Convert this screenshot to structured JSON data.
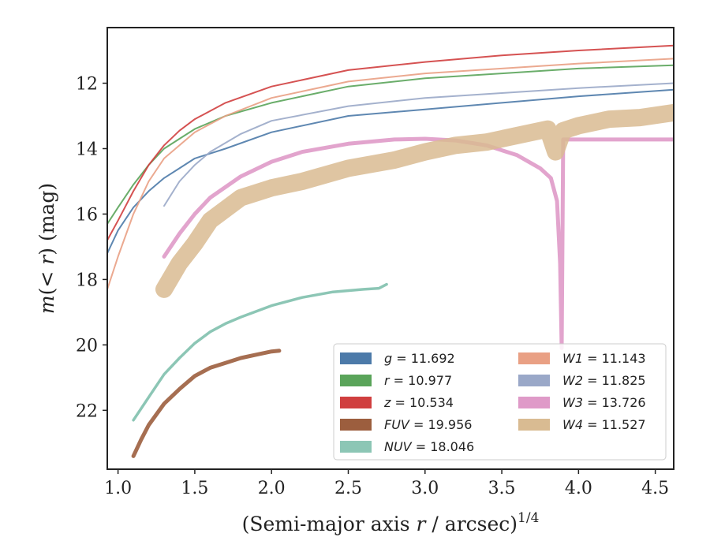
{
  "chart_data": {
    "type": "line",
    "xlabel": "(Semi-major axis r / arcsec)",
    "xlabel_main": "(Semi-major axis ",
    "xlabel_var": "r",
    "xlabel_tail": " / arcsec)",
    "xlabel_sup": "1/4",
    "ylabel": "m(< r) (mag)",
    "ylabel_pre": "m",
    "ylabel_mid": "(< ",
    "ylabel_var": "r",
    "ylabel_post": ") (mag)",
    "xlim": [
      0.93,
      4.62
    ],
    "ylim": [
      23.8,
      10.3
    ],
    "y_inverted": true,
    "grid": false,
    "xticks": [
      1.0,
      1.5,
      2.0,
      2.5,
      3.0,
      3.5,
      4.0,
      4.5
    ],
    "xtick_labels": [
      "1.0",
      "1.5",
      "2.0",
      "2.5",
      "3.0",
      "3.5",
      "4.0",
      "4.5"
    ],
    "yticks": [
      12,
      14,
      16,
      18,
      20,
      22
    ],
    "ytick_labels": [
      "12",
      "14",
      "16",
      "18",
      "20",
      "22"
    ],
    "legend_position": "lower-right",
    "series": [
      {
        "name": "g = 11.692",
        "band": "g",
        "total_mag": "11.692",
        "color": "#4c7aa9",
        "width": 2.0,
        "x": [
          0.93,
          1.0,
          1.1,
          1.2,
          1.3,
          1.4,
          1.5,
          1.7,
          2.0,
          2.5,
          3.0,
          3.5,
          4.0,
          4.62
        ],
        "y": [
          17.2,
          16.5,
          15.8,
          15.3,
          14.9,
          14.6,
          14.3,
          14.0,
          13.5,
          13.0,
          12.8,
          12.6,
          12.4,
          12.2
        ]
      },
      {
        "name": "r = 10.977",
        "band": "r",
        "total_mag": "10.977",
        "color": "#5aa45a",
        "width": 2.0,
        "x": [
          0.93,
          1.0,
          1.1,
          1.2,
          1.3,
          1.4,
          1.5,
          1.7,
          2.0,
          2.5,
          3.0,
          3.5,
          4.0,
          4.62
        ],
        "y": [
          16.3,
          15.8,
          15.1,
          14.5,
          14.0,
          13.7,
          13.4,
          13.0,
          12.6,
          12.1,
          11.85,
          11.7,
          11.55,
          11.45
        ]
      },
      {
        "name": "z = 10.534",
        "band": "z",
        "total_mag": "10.534",
        "color": "#d03f3f",
        "width": 2.0,
        "x": [
          0.93,
          1.0,
          1.1,
          1.2,
          1.3,
          1.4,
          1.5,
          1.7,
          2.0,
          2.5,
          3.0,
          3.5,
          4.0,
          4.62
        ],
        "y": [
          16.8,
          16.2,
          15.3,
          14.5,
          13.9,
          13.45,
          13.1,
          12.6,
          12.1,
          11.6,
          11.35,
          11.15,
          11.0,
          10.85
        ]
      },
      {
        "name": "FUV = 19.956",
        "band": "FUV",
        "total_mag": "19.956",
        "color": "#9c5e3e",
        "width": 5.0,
        "x": [
          1.1,
          1.15,
          1.2,
          1.3,
          1.4,
          1.5,
          1.6,
          1.7,
          1.8,
          1.9,
          2.0,
          2.05
        ],
        "y": [
          23.4,
          22.9,
          22.45,
          21.8,
          21.35,
          20.95,
          20.7,
          20.55,
          20.4,
          20.3,
          20.2,
          20.18
        ]
      },
      {
        "name": "NUV = 18.046",
        "band": "NUV",
        "total_mag": "18.046",
        "color": "#7fc0ad",
        "width": 3.5,
        "x": [
          1.1,
          1.2,
          1.3,
          1.4,
          1.5,
          1.6,
          1.7,
          1.8,
          2.0,
          2.2,
          2.4,
          2.6,
          2.7,
          2.75
        ],
        "y": [
          22.3,
          21.6,
          20.9,
          20.4,
          19.95,
          19.6,
          19.35,
          19.15,
          18.8,
          18.55,
          18.38,
          18.3,
          18.27,
          18.15
        ]
      },
      {
        "name": "W1 = 11.143",
        "band": "W1",
        "total_mag": "11.143",
        "color": "#e9a084",
        "width": 2.0,
        "x": [
          0.93,
          1.0,
          1.1,
          1.2,
          1.3,
          1.4,
          1.5,
          1.7,
          2.0,
          2.5,
          3.0,
          3.5,
          4.0,
          4.62
        ],
        "y": [
          18.3,
          17.3,
          16.0,
          15.0,
          14.3,
          13.9,
          13.5,
          13.0,
          12.45,
          11.95,
          11.7,
          11.55,
          11.4,
          11.25
        ]
      },
      {
        "name": "W2 = 11.825",
        "band": "W2",
        "total_mag": "11.825",
        "color": "#9aa8c8",
        "width": 2.0,
        "x": [
          1.3,
          1.4,
          1.5,
          1.6,
          1.8,
          2.0,
          2.5,
          3.0,
          3.5,
          4.0,
          4.62
        ],
        "y": [
          15.75,
          15.0,
          14.5,
          14.1,
          13.55,
          13.15,
          12.7,
          12.45,
          12.3,
          12.15,
          12.0
        ]
      },
      {
        "name": "W3 = 13.726",
        "band": "W3",
        "total_mag": "13.726",
        "color": "#df9ac8",
        "width": 5.0,
        "x": [
          1.3,
          1.4,
          1.5,
          1.6,
          1.8,
          2.0,
          2.2,
          2.5,
          2.8,
          3.0,
          3.2,
          3.4,
          3.6,
          3.75,
          3.82,
          3.86,
          3.88,
          3.89,
          3.9,
          4.2,
          4.62
        ],
        "y": [
          17.3,
          16.6,
          16.0,
          15.5,
          14.85,
          14.4,
          14.1,
          13.85,
          13.72,
          13.7,
          13.75,
          13.9,
          14.2,
          14.6,
          14.9,
          15.6,
          17.5,
          20.1,
          13.72,
          13.72,
          13.72
        ]
      },
      {
        "name": "W4 = 11.527",
        "band": "W4",
        "total_mag": "11.527",
        "color": "#d9bb92",
        "width": 22.0,
        "x": [
          1.3,
          1.4,
          1.5,
          1.6,
          1.8,
          2.0,
          2.2,
          2.5,
          2.8,
          3.0,
          3.2,
          3.4,
          3.6,
          3.8,
          3.85,
          3.9,
          4.0,
          4.2,
          4.4,
          4.62
        ],
        "y": [
          18.3,
          17.5,
          16.9,
          16.2,
          15.5,
          15.2,
          15.0,
          14.6,
          14.35,
          14.1,
          13.9,
          13.8,
          13.6,
          13.4,
          14.1,
          13.45,
          13.3,
          13.1,
          13.05,
          12.9
        ]
      }
    ]
  }
}
